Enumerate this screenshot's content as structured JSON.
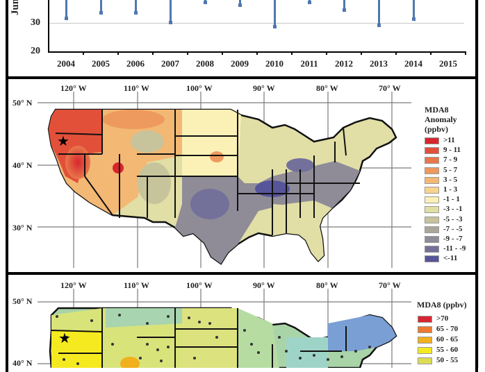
{
  "chart_data": [
    {
      "type": "bar",
      "title": "",
      "xlabel": "",
      "ylabel": "Jun",
      "ylim": [
        20,
        38
      ],
      "yticks": [
        20,
        30
      ],
      "grid": true,
      "categories": [
        "2004",
        "2005",
        "2006",
        "2007",
        "2008",
        "2009",
        "2010",
        "2011",
        "2012",
        "2013",
        "2014",
        "2015"
      ],
      "series": [
        {
          "name": "bar-bottom",
          "values": [
            31.5,
            33.4,
            33.3,
            30.0,
            37.0,
            36.0,
            28.5,
            37.0,
            34.5,
            29.0,
            31.2,
            null
          ]
        }
      ],
      "bar_color": "#4f78b0"
    },
    {
      "type": "heatmap",
      "title": "MDA8 Anomaly (ppbv)",
      "longitude_labels": [
        "120° W",
        "110° W",
        "100° W",
        "90° W",
        "80° W",
        "70° W"
      ],
      "latitude_labels": [
        "50° N",
        "40° N",
        "30° N"
      ],
      "legend": {
        "title": [
          "MDA8",
          "Anomaly",
          "(ppbv)"
        ],
        "position": "right",
        "entries": [
          {
            "label": ">11",
            "color": "#d7262e"
          },
          {
            "label": "9 - 11",
            "color": "#e2503a"
          },
          {
            "label": "7 - 9",
            "color": "#e8784a"
          },
          {
            "label": "5 - 7",
            "color": "#ee9a5e"
          },
          {
            "label": "3 - 5",
            "color": "#f3b874"
          },
          {
            "label": "1 - 3",
            "color": "#f7d48f"
          },
          {
            "label": "-1 - 1",
            "color": "#fbf1b6"
          },
          {
            "label": "-3 - -1",
            "color": "#e1dea6"
          },
          {
            "label": "-5 - -3",
            "color": "#c7c49c"
          },
          {
            "label": "-7 - -5",
            "color": "#aaa79a"
          },
          {
            "label": "-9 - -7",
            "color": "#8f8c98"
          },
          {
            "label": "-11 - -9",
            "color": "#73719a"
          },
          {
            "label": "<-11",
            "color": "#57559a"
          }
        ]
      },
      "marker": "star (Oregon)"
    },
    {
      "type": "heatmap",
      "title": "MDA8 (ppbv)",
      "longitude_labels": [
        "120° W",
        "110° W",
        "100° W",
        "90° W",
        "80° W",
        "70° W"
      ],
      "latitude_labels": [
        "50° N",
        "40° N"
      ],
      "legend": {
        "title": [
          "MDA8 (ppbv)"
        ],
        "position": "right",
        "entries": [
          {
            "label": ">70",
            "color": "#d62631"
          },
          {
            "label": "65 - 70",
            "color": "#ec7a31"
          },
          {
            "label": "60 - 65",
            "color": "#f1b01e"
          },
          {
            "label": "55 - 60",
            "color": "#f5ea20"
          },
          {
            "label": "50 - 55",
            "color": "#dcdc55"
          }
        ]
      },
      "marker": "star (Oregon)",
      "points": "monitoring sites (dark dots)"
    }
  ],
  "top_chart": {
    "ylabel": "Jun",
    "yticks": [
      "30",
      "20"
    ],
    "years": [
      "2004",
      "2005",
      "2006",
      "2007",
      "2008",
      "2009",
      "2010",
      "2011",
      "2012",
      "2013",
      "2014",
      "2015"
    ]
  },
  "map1": {
    "lon": [
      "120° W",
      "110° W",
      "100° W",
      "90° W",
      "80° W",
      "70° W"
    ],
    "lat": [
      "50° N",
      "40° N",
      "30° N"
    ],
    "legend_title": [
      "MDA8",
      "Anomaly",
      "(ppbv)"
    ],
    "legend": [
      ">11",
      "9 - 11",
      "7 - 9",
      "5 - 7",
      "3 - 5",
      "1 - 3",
      "-1 - 1",
      "-3 - -1",
      "-5 - -3",
      "-7 - -5",
      "-9 - -7",
      "-11 - -9",
      "<-11"
    ],
    "colors": [
      "#d7262e",
      "#e2503a",
      "#e8784a",
      "#ee9a5e",
      "#f3b874",
      "#f7d48f",
      "#fbf1b6",
      "#e1dea6",
      "#c7c49c",
      "#aaa79a",
      "#8f8c98",
      "#73719a",
      "#57559a"
    ]
  },
  "map2": {
    "lon": [
      "120° W",
      "110° W",
      "100° W",
      "90° W",
      "80° W",
      "70° W"
    ],
    "lat": [
      "50° N",
      "40° N"
    ],
    "legend_title": "MDA8 (ppbv)",
    "legend": [
      ">70",
      "65 - 70",
      "60 - 65",
      "55 - 60",
      "50 - 55"
    ],
    "colors": [
      "#d62631",
      "#ec7a31",
      "#f1b01e",
      "#f5ea20",
      "#dcdc55"
    ]
  }
}
